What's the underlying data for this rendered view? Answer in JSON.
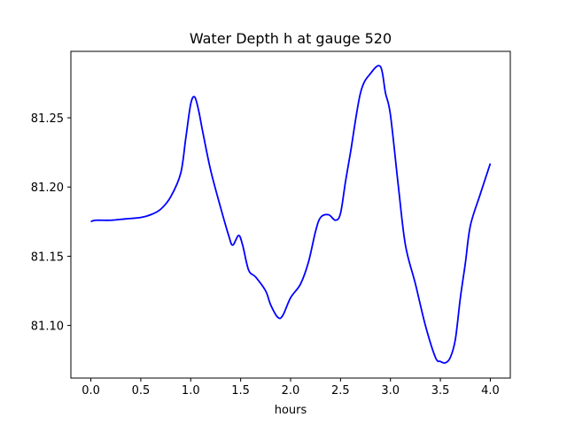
{
  "chart_data": {
    "type": "line",
    "title": "Water Depth h at gauge 520",
    "xlabel": "hours",
    "ylabel": "",
    "xlim": [
      -0.2,
      4.2
    ],
    "ylim": [
      81.062,
      81.298
    ],
    "xticks": [
      0.0,
      0.5,
      1.0,
      1.5,
      2.0,
      2.5,
      3.0,
      3.5,
      4.0
    ],
    "xtick_labels": [
      "0.0",
      "0.5",
      "1.0",
      "1.5",
      "2.0",
      "2.5",
      "3.0",
      "3.5",
      "4.0"
    ],
    "yticks": [
      81.1,
      81.15,
      81.2,
      81.25
    ],
    "ytick_labels": [
      "81.10",
      "81.15",
      "81.20",
      "81.25"
    ],
    "grid": false,
    "legend": "none",
    "series": [
      {
        "color": "#0000ff",
        "x": [
          0.0,
          0.05,
          0.2,
          0.35,
          0.5,
          0.6,
          0.7,
          0.8,
          0.9,
          0.95,
          1.0,
          1.04,
          1.08,
          1.12,
          1.2,
          1.3,
          1.38,
          1.42,
          1.48,
          1.52,
          1.58,
          1.65,
          1.75,
          1.8,
          1.87,
          1.92,
          2.0,
          2.1,
          2.18,
          2.25,
          2.3,
          2.38,
          2.45,
          2.5,
          2.55,
          2.6,
          2.7,
          2.8,
          2.9,
          2.95,
          3.0,
          3.08,
          3.15,
          3.25,
          3.35,
          3.45,
          3.5,
          3.55,
          3.6,
          3.65,
          3.7,
          3.75,
          3.8,
          3.9,
          4.0
        ],
        "y": [
          81.175,
          81.176,
          81.176,
          81.177,
          81.178,
          81.18,
          81.184,
          81.193,
          81.21,
          81.235,
          81.26,
          81.265,
          81.255,
          81.24,
          81.212,
          81.185,
          81.165,
          81.158,
          81.165,
          81.158,
          81.14,
          81.135,
          81.125,
          81.115,
          81.106,
          81.107,
          81.12,
          81.13,
          81.146,
          81.168,
          81.178,
          81.18,
          81.176,
          81.181,
          81.204,
          81.225,
          81.268,
          81.282,
          81.287,
          81.268,
          81.252,
          81.2,
          81.158,
          81.13,
          81.1,
          81.077,
          81.074,
          81.073,
          81.077,
          81.09,
          81.12,
          81.145,
          81.172,
          81.195,
          81.217
        ]
      }
    ]
  }
}
